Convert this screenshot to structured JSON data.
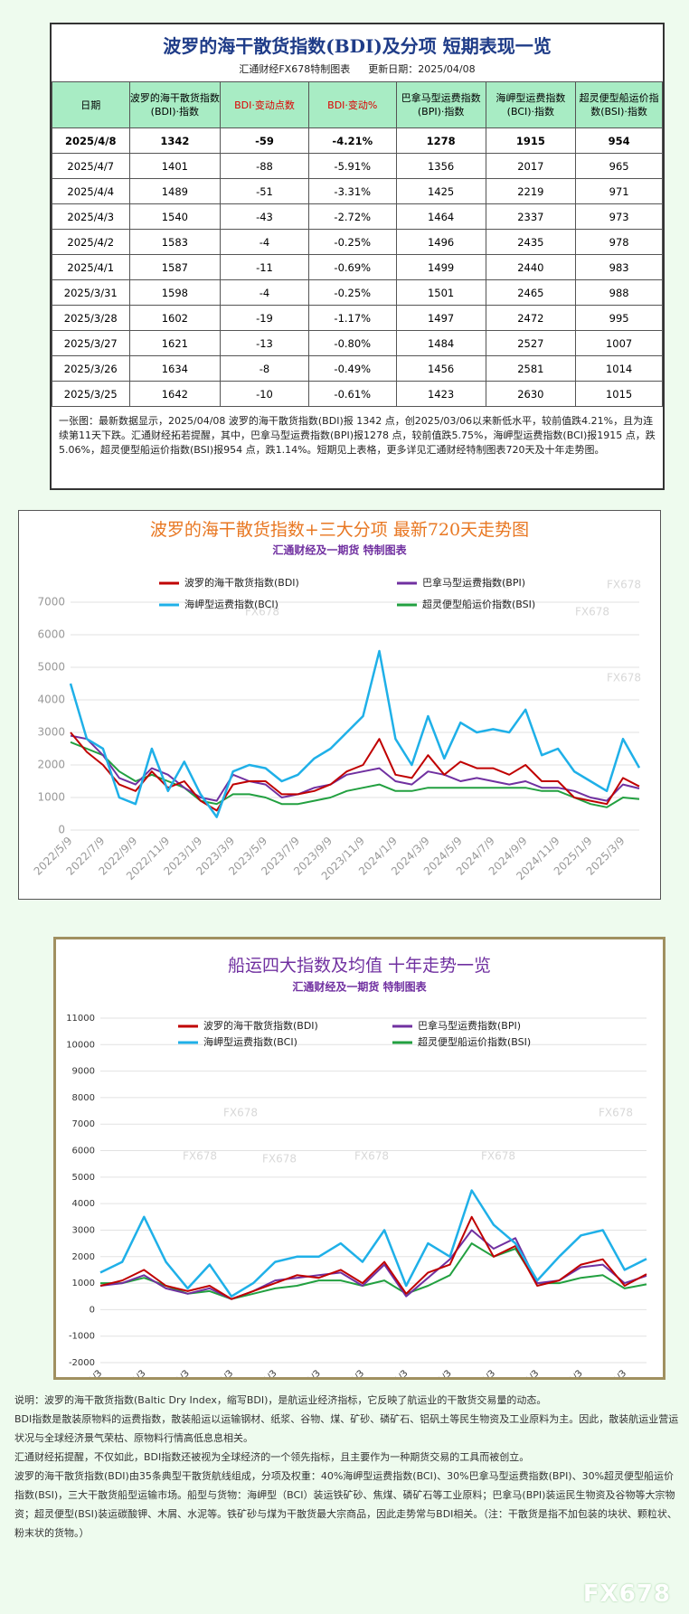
{
  "table_section": {
    "title": "波罗的海干散货指数(BDI)及分项  短期表现一览",
    "subtitle": "汇通财经FX678特制图表",
    "update_date": "更新日期：2025/04/08",
    "headers": [
      "日期",
      "波罗的海干散货指数(BDI)·指数",
      "BDI·变动点数",
      "BDI·变动%",
      "巴拿马型运费指数(BPI)·指数",
      "海岬型运费指数(BCI)·指数",
      "超灵便型船运价指数(BSI)·指数"
    ],
    "rows": [
      [
        "2025/4/8",
        "1342",
        "-59",
        "-4.21%",
        "1278",
        "1915",
        "954"
      ],
      [
        "2025/4/7",
        "1401",
        "-88",
        "-5.91%",
        "1356",
        "2017",
        "965"
      ],
      [
        "2025/4/4",
        "1489",
        "-51",
        "-3.31%",
        "1425",
        "2219",
        "971"
      ],
      [
        "2025/4/3",
        "1540",
        "-43",
        "-2.72%",
        "1464",
        "2337",
        "973"
      ],
      [
        "2025/4/2",
        "1583",
        "-4",
        "-0.25%",
        "1496",
        "2435",
        "978"
      ],
      [
        "2025/4/1",
        "1587",
        "-11",
        "-0.69%",
        "1499",
        "2440",
        "983"
      ],
      [
        "2025/3/31",
        "1598",
        "-4",
        "-0.25%",
        "1501",
        "2465",
        "988"
      ],
      [
        "2025/3/28",
        "1602",
        "-19",
        "-1.17%",
        "1497",
        "2472",
        "995"
      ],
      [
        "2025/3/27",
        "1621",
        "-13",
        "-0.80%",
        "1484",
        "2527",
        "1007"
      ],
      [
        "2025/3/26",
        "1634",
        "-8",
        "-0.49%",
        "1456",
        "2581",
        "1014"
      ],
      [
        "2025/3/25",
        "1642",
        "-10",
        "-0.61%",
        "1423",
        "2630",
        "1015"
      ]
    ],
    "note": "一张图：最新数据显示，2025/04/08 波罗的海干散货指数(BDI)报 1342 点，创2025/03/06以来新低水平，较前值跌4.21%，且为连续第11天下跌。汇通财经拓若提醒，其中，巴拿马型运费指数(BPI)报1278 点，较前值跌5.75%，海岬型运费指数(BCI)报1915 点，跌5.06%，超灵便型船运价指数(BSI)报954 点，跌1.14%。短期见上表格，更多详见汇通财经特制图表720天及十年走势图。"
  },
  "chart_data": [
    {
      "type": "line",
      "title": "波罗的海干散货指数+三大分项  最新720天走势图",
      "subtitle": "汇通财经及一期货  特制图表",
      "categories": [
        "2022/5/9",
        null,
        "2022/7/9",
        null,
        "2022/9/9",
        null,
        "2022/11/9",
        null,
        "2023/1/9",
        null,
        "2023/3/9",
        null,
        "2023/5/9",
        null,
        "2023/7/9",
        null,
        "2023/9/9",
        null,
        "2023/11/9",
        null,
        "2024/1/9",
        null,
        "2024/3/9",
        null,
        "2024/5/9",
        null,
        "2024/7/9",
        null,
        "2024/9/9",
        null,
        "2024/11/9",
        null,
        "2025/1/9",
        null,
        "2025/3/9",
        null
      ],
      "series": [
        {
          "name": "波罗的海干散货指数(BDI)",
          "color": "#c00000",
          "values": [
            3000,
            2400,
            2000,
            1400,
            1200,
            1800,
            1300,
            1500,
            900,
            600,
            1400,
            1500,
            1500,
            1100,
            1100,
            1200,
            1400,
            1800,
            2000,
            2800,
            1700,
            1600,
            2300,
            1700,
            2100,
            1900,
            1900,
            1700,
            2000,
            1500,
            1500,
            1000,
            900,
            800,
            1600,
            1342
          ]
        },
        {
          "name": "巴拿马型运费指数(BPI)",
          "color": "#7030a0",
          "values": [
            2900,
            2800,
            2300,
            1600,
            1400,
            1900,
            1700,
            1300,
            1000,
            900,
            1700,
            1500,
            1400,
            1000,
            1100,
            1300,
            1400,
            1700,
            1800,
            1900,
            1500,
            1400,
            1800,
            1700,
            1500,
            1600,
            1500,
            1400,
            1500,
            1300,
            1300,
            1200,
            1000,
            900,
            1400,
            1278
          ]
        },
        {
          "name": "海岬型运费指数(BCI)",
          "color": "#1fb0e8",
          "values": [
            4500,
            2800,
            2500,
            1000,
            800,
            2500,
            1200,
            2100,
            1100,
            400,
            1800,
            2000,
            1900,
            1500,
            1700,
            2200,
            2500,
            3000,
            3500,
            5500,
            2800,
            2000,
            3500,
            2200,
            3300,
            3000,
            3100,
            3000,
            3700,
            2300,
            2500,
            1800,
            1500,
            1200,
            2800,
            1915
          ]
        },
        {
          "name": "超灵便型船运价指数(BSI)",
          "color": "#22a040",
          "values": [
            2700,
            2500,
            2300,
            1800,
            1500,
            1700,
            1500,
            1300,
            900,
            800,
            1100,
            1100,
            1000,
            800,
            800,
            900,
            1000,
            1200,
            1300,
            1400,
            1200,
            1200,
            1300,
            1300,
            1300,
            1300,
            1300,
            1300,
            1300,
            1200,
            1200,
            1000,
            800,
            700,
            1000,
            954
          ]
        }
      ],
      "ylim": [
        0,
        7000
      ],
      "yticks": [
        0,
        1000,
        2000,
        3000,
        4000,
        5000,
        6000,
        7000
      ],
      "grid": true,
      "title_color": "#e87722",
      "subtitle_color": "#7030a0",
      "watermarks": [
        "FX678",
        "FX678",
        "FX678",
        "FX678",
        "FX678",
        "FX678"
      ]
    },
    {
      "type": "line",
      "title": "船运四大指数及均值 十年走势一览",
      "subtitle": "汇通财经及一期货 特制图表",
      "categories": [
        "2013/1/3",
        null,
        "2014/1/3",
        null,
        "2015/1/3",
        null,
        "2016/1/3",
        null,
        "2017/1/3",
        null,
        "2018/1/3",
        null,
        "2019/1/3",
        null,
        "2020/1/3",
        null,
        "2021/1/3",
        null,
        "2022/1/3",
        null,
        "2023/1/3",
        null,
        "2024/1/3",
        null,
        "2025/1/3",
        null
      ],
      "series": [
        {
          "name": "波罗的海干散货指数(BDI)",
          "color": "#c00000",
          "values": [
            900,
            1100,
            1500,
            900,
            700,
            900,
            400,
            700,
            1000,
            1300,
            1200,
            1500,
            1000,
            1800,
            600,
            1400,
            1700,
            3500,
            2000,
            2400,
            900,
            1100,
            1700,
            1900,
            900,
            1342
          ]
        },
        {
          "name": "巴拿马型运费指数(BPI)",
          "color": "#7030a0",
          "values": [
            900,
            1000,
            1300,
            800,
            600,
            800,
            400,
            700,
            1100,
            1200,
            1300,
            1400,
            900,
            1700,
            500,
            1200,
            1900,
            3000,
            2300,
            2700,
            1000,
            1100,
            1600,
            1700,
            1000,
            1278
          ]
        },
        {
          "name": "海岬型运费指数(BCI)",
          "color": "#1fb0e8",
          "values": [
            1400,
            1800,
            3500,
            1800,
            800,
            1700,
            500,
            1000,
            1800,
            2000,
            2000,
            2500,
            1800,
            3000,
            900,
            2500,
            2000,
            4500,
            3200,
            2500,
            1100,
            2000,
            2800,
            3000,
            1500,
            1915
          ]
        },
        {
          "name": "超灵便型船运价指数(BSI)",
          "color": "#22a040",
          "values": [
            1000,
            1000,
            1200,
            900,
            600,
            700,
            400,
            600,
            800,
            900,
            1100,
            1100,
            900,
            1100,
            600,
            900,
            1300,
            2500,
            2000,
            2300,
            1000,
            1000,
            1200,
            1300,
            800,
            954
          ]
        }
      ],
      "ylim": [
        -2000,
        11000
      ],
      "yticks": [
        -2000,
        -1000,
        0,
        1000,
        2000,
        3000,
        4000,
        5000,
        6000,
        7000,
        8000,
        9000,
        10000,
        11000
      ],
      "grid": true,
      "title_color": "#7030a0",
      "subtitle_color": "#7030a0",
      "watermarks": [
        "FX678",
        "FX678",
        "FX678",
        "FX678",
        "FX678",
        "FX678"
      ]
    }
  ],
  "description": [
    "说明：波罗的海干散货指数(Baltic Dry Index，缩写BDI)，是航运业经济指标，它反映了航运业的干散货交易量的动态。",
    "BDI指数是散装原物料的运费指数，散装船运以运输钢材、纸浆、谷物、煤、矿砂、磷矿石、铝矾土等民生物资及工业原料为主。因此，散装航运业营运状况与全球经济景气荣枯、原物料行情高低息息相关。",
    "汇通财经拓提醒，不仅如此，BDI指数还被视为全球经济的一个领先指标，且主要作为一种期货交易的工具而被创立。",
    "波罗的海干散货指数(BDI)由35条典型干散货航线组成，分项及权重：40%海岬型运费指数(BCI)、30%巴拿马型运费指数(BPI)、30%超灵便型船运价指数(BSI)，三大干散货船型运输市场。船型与货物：海岬型（BCI）装运铁矿砂、焦煤、磷矿石等工业原料；巴拿马(BPI)装运民生物资及谷物等大宗物资；超灵便型(BSI)装运碳酸钾、木屑、水泥等。铁矿砂与煤为干散货最大宗商品，因此走势常与BDI相关。（注：干散货是指不加包装的块状、颗粒状、粉末状的货物。）"
  ],
  "logo": "FX678"
}
